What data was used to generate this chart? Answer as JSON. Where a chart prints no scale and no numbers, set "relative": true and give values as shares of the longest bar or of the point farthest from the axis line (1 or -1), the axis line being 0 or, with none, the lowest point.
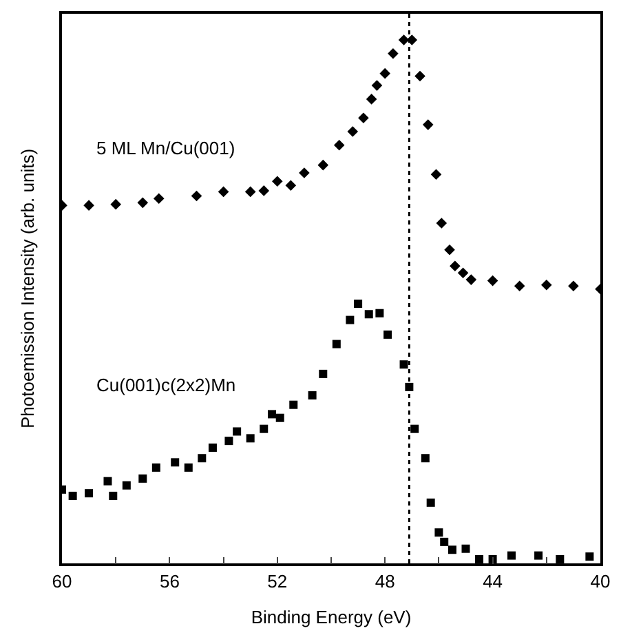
{
  "chart_data": {
    "type": "scatter",
    "relative": true,
    "xlabel": "Binding Energy (eV)",
    "ylabel": "Photoemission Intensity (arb. units)",
    "xlim": [
      60,
      40
    ],
    "xticks": [
      60,
      {
        "value": 58,
        "label": null
      },
      56,
      {
        "value": 54,
        "label": null
      },
      52,
      {
        "value": 50,
        "label": null
      },
      48,
      {
        "value": 46,
        "label": null
      },
      44,
      {
        "value": 42,
        "label": null
      },
      40
    ],
    "legend": false,
    "tick_labels": "x",
    "series": [
      {
        "name": "5 ML Mn/Cu(001)",
        "color": "#000000",
        "marker": "diamond",
        "x": [
          60,
          59,
          58,
          57,
          56.4,
          55,
          54,
          53,
          52.5,
          52.0,
          51.5,
          51.0,
          50.3,
          49.7,
          49.2,
          48.8,
          48.5,
          48.3,
          48.0,
          47.7,
          47.3,
          47.0,
          46.7,
          46.4,
          46.1,
          45.9,
          45.6,
          45.4,
          45.1,
          44.8,
          44,
          43,
          42,
          41,
          40
        ],
        "values": [
          0.684,
          0.684,
          0.686,
          0.689,
          0.697,
          0.702,
          0.71,
          0.71,
          0.712,
          0.73,
          0.722,
          0.746,
          0.761,
          0.799,
          0.825,
          0.851,
          0.887,
          0.913,
          0.936,
          0.974,
          1,
          1,
          0.931,
          0.838,
          0.743,
          0.65,
          0.599,
          0.568,
          0.555,
          0.542,
          0.54,
          0.53,
          0.532,
          0.53,
          0.524
        ]
      },
      {
        "name": "Cu(001)c(2x2)Mn",
        "color": "#000000",
        "marker": "square",
        "x": [
          60,
          59.6,
          59,
          58.3,
          58.1,
          57.6,
          57.0,
          56.5,
          55.8,
          55.3,
          54.8,
          54.4,
          53.8,
          53.5,
          53.0,
          52.5,
          52.2,
          51.9,
          51.4,
          50.7,
          50.3,
          49.8,
          49.3,
          49.0,
          48.6,
          48.2,
          47.9,
          47.3,
          47.1,
          46.9,
          46.5,
          46.3,
          46.0,
          45.8,
          45.5,
          45.0,
          44.5,
          44.0,
          43.3,
          42.3,
          41.5,
          40.4
        ],
        "values": [
          0.141,
          0.129,
          0.134,
          0.157,
          0.129,
          0.149,
          0.162,
          0.183,
          0.193,
          0.183,
          0.201,
          0.221,
          0.234,
          0.252,
          0.239,
          0.257,
          0.285,
          0.278,
          0.303,
          0.321,
          0.362,
          0.419,
          0.465,
          0.496,
          0.476,
          0.478,
          0.437,
          0.38,
          0.337,
          0.257,
          0.201,
          0.116,
          0.059,
          0.041,
          0.026,
          0.028,
          0.008,
          0.008,
          0.015,
          0.015,
          0.008,
          0.013
        ]
      }
    ],
    "ref_lines": [
      {
        "axis": "x",
        "value": 47.1,
        "line_style": "dotted",
        "color": "#000000"
      }
    ]
  }
}
